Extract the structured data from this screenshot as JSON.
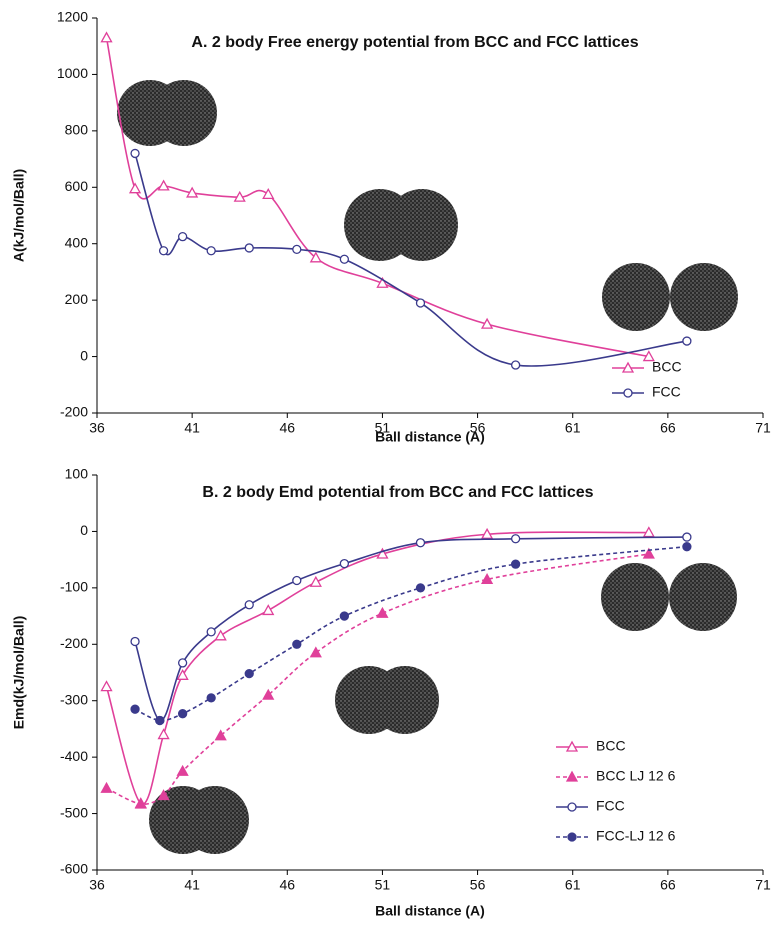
{
  "chart_data": [
    {
      "type": "line",
      "title": "A. 2 body Free energy potential from BCC and FCC lattices",
      "x_label": "Ball distance (A)",
      "y_label": "A(kJ/mol/Ball)",
      "xlim": [
        36,
        71
      ],
      "xticks": [
        36,
        41,
        46,
        51,
        56,
        61,
        66,
        71
      ],
      "ylim": [
        -200,
        1200
      ],
      "yticks": [
        -200,
        0,
        200,
        400,
        600,
        800,
        1000,
        1200
      ],
      "legend": "lower right",
      "series": [
        {
          "name": "BCC",
          "color": "#e0409a",
          "marker": "triangle",
          "filled": false,
          "dashed": false,
          "x": [
            36.5,
            38,
            39.5,
            41,
            43.5,
            45,
            47.5,
            51,
            56.5,
            65
          ],
          "values": [
            1130,
            595,
            605,
            580,
            565,
            575,
            350,
            260,
            115,
            0
          ]
        },
        {
          "name": "FCC",
          "color": "#3a3a8c",
          "marker": "circle",
          "filled": false,
          "dashed": false,
          "x": [
            38,
            39.5,
            40.5,
            42,
            44,
            46.5,
            49,
            53,
            58,
            67
          ],
          "values": [
            720,
            375,
            425,
            375,
            385,
            380,
            345,
            190,
            -30,
            55
          ]
        }
      ]
    },
    {
      "type": "line",
      "title": "B. 2 body Emd potential from BCC and FCC lattices",
      "x_label": "Ball distance (A)",
      "y_label": "Emd(kJ/mol/Ball)",
      "xlim": [
        36,
        71
      ],
      "xticks": [
        36,
        41,
        46,
        51,
        56,
        61,
        66,
        71
      ],
      "ylim": [
        -600,
        100
      ],
      "yticks": [
        -600,
        -500,
        -400,
        -300,
        -200,
        -100,
        0,
        100
      ],
      "legend": "lower right",
      "series": [
        {
          "name": "BCC",
          "color": "#e0409a",
          "marker": "triangle",
          "filled": false,
          "dashed": false,
          "x": [
            36.5,
            38.3,
            39.5,
            40.5,
            42.5,
            45,
            47.5,
            51,
            56.5,
            65
          ],
          "values": [
            -275,
            -482,
            -360,
            -255,
            -185,
            -140,
            -90,
            -40,
            -5,
            -2
          ]
        },
        {
          "name": "BCC LJ 12 6",
          "color": "#e0409a",
          "marker": "triangle",
          "filled": true,
          "dashed": true,
          "x": [
            36.5,
            38.3,
            39.5,
            40.5,
            42.5,
            45,
            47.5,
            51,
            56.5,
            65
          ],
          "values": [
            -455,
            -483,
            -468,
            -425,
            -362,
            -290,
            -215,
            -145,
            -85,
            -40
          ]
        },
        {
          "name": "FCC",
          "color": "#3a3a8c",
          "marker": "circle",
          "filled": false,
          "dashed": false,
          "x": [
            38,
            39.3,
            40.5,
            42,
            44,
            46.5,
            49,
            53,
            58,
            67
          ],
          "values": [
            -195,
            -335,
            -233,
            -178,
            -130,
            -87,
            -57,
            -20,
            -13,
            -10
          ]
        },
        {
          "name": "FCC-LJ 12 6",
          "color": "#3a3a8c",
          "marker": "circle",
          "filled": true,
          "dashed": true,
          "x": [
            38,
            39.3,
            40.5,
            42,
            44,
            46.5,
            49,
            53,
            58,
            67
          ],
          "values": [
            -315,
            -335,
            -323,
            -295,
            -252,
            -200,
            -150,
            -100,
            -58,
            -27
          ]
        }
      ]
    }
  ]
}
